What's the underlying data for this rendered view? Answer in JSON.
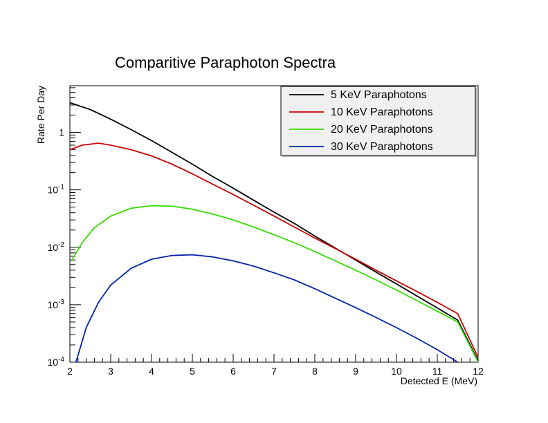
{
  "chart_data": {
    "type": "line",
    "title": "Comparitive Paraphoton Spectra",
    "xlabel": "Detected E (MeV)",
    "ylabel": "Rate Per Day",
    "xlim": [
      2,
      12
    ],
    "ylim": [
      0.0001,
      6.5
    ],
    "yscale": "log",
    "grid": false,
    "legend_position": "top-right",
    "x_ticks": [
      "2",
      "3",
      "4",
      "5",
      "6",
      "7",
      "8",
      "9",
      "10",
      "11",
      "12"
    ],
    "y_ticks": [
      {
        "value": 1,
        "label": "1",
        "sup": ""
      },
      {
        "value": 0.1,
        "label": "10",
        "sup": "-1"
      },
      {
        "value": 0.01,
        "label": "10",
        "sup": "-2"
      },
      {
        "value": 0.001,
        "label": "10",
        "sup": "-3"
      },
      {
        "value": 0.0001,
        "label": "10",
        "sup": "-4"
      }
    ],
    "series": [
      {
        "name": "5 KeV Paraphotons",
        "color": "#000000",
        "x": [
          2.0,
          2.5,
          3.0,
          3.5,
          4.0,
          4.5,
          5.0,
          5.5,
          6.0,
          6.5,
          7.0,
          7.5,
          8.0,
          8.5,
          9.0,
          9.5,
          10.0,
          10.5,
          11.0,
          11.5,
          12.0
        ],
        "y": [
          3.3,
          2.5,
          1.7,
          1.12,
          0.72,
          0.45,
          0.28,
          0.17,
          0.107,
          0.066,
          0.041,
          0.026,
          0.0157,
          0.0097,
          0.006,
          0.0037,
          0.0023,
          0.00142,
          0.00088,
          0.00054,
          0.000105
        ]
      },
      {
        "name": "10 KeV Paraphotons",
        "color": "#cc0000",
        "x": [
          2.0,
          2.3,
          2.7,
          3.0,
          3.5,
          4.0,
          4.5,
          5.0,
          5.5,
          6.0,
          6.5,
          7.0,
          7.5,
          8.0,
          8.5,
          9.0,
          9.5,
          10.0,
          10.5,
          11.0,
          11.5,
          12.0
        ],
        "y": [
          0.5,
          0.6,
          0.65,
          0.6,
          0.5,
          0.39,
          0.28,
          0.19,
          0.125,
          0.083,
          0.054,
          0.035,
          0.0225,
          0.0145,
          0.0095,
          0.0062,
          0.004,
          0.0026,
          0.0017,
          0.0011,
          0.0007,
          0.00012
        ]
      },
      {
        "name": "20 KeV Paraphotons",
        "color": "#33dd00",
        "x": [
          2.05,
          2.3,
          2.6,
          3.0,
          3.5,
          4.0,
          4.5,
          5.0,
          5.5,
          6.0,
          6.5,
          7.0,
          7.5,
          8.0,
          8.5,
          9.0,
          9.5,
          10.0,
          10.5,
          11.0,
          11.5,
          12.0
        ],
        "y": [
          0.006,
          0.012,
          0.022,
          0.035,
          0.048,
          0.053,
          0.052,
          0.046,
          0.038,
          0.03,
          0.0225,
          0.0165,
          0.012,
          0.0084,
          0.0058,
          0.004,
          0.0027,
          0.0018,
          0.00118,
          0.00077,
          0.0005,
          0.0001
        ]
      },
      {
        "name": "30 KeV Paraphotons",
        "color": "#0022aa",
        "x": [
          2.15,
          2.4,
          2.7,
          3.0,
          3.5,
          4.0,
          4.5,
          5.0,
          5.5,
          6.0,
          6.5,
          7.0,
          7.5,
          8.0,
          8.5,
          9.0,
          9.5,
          10.0,
          10.5,
          11.0,
          11.5
        ],
        "y": [
          0.0001,
          0.0004,
          0.0011,
          0.0022,
          0.0043,
          0.0062,
          0.0072,
          0.0074,
          0.0068,
          0.0058,
          0.0047,
          0.0036,
          0.0027,
          0.0019,
          0.0013,
          0.00089,
          0.0006,
          0.0004,
          0.00026,
          0.000165,
          0.0001
        ]
      }
    ]
  }
}
